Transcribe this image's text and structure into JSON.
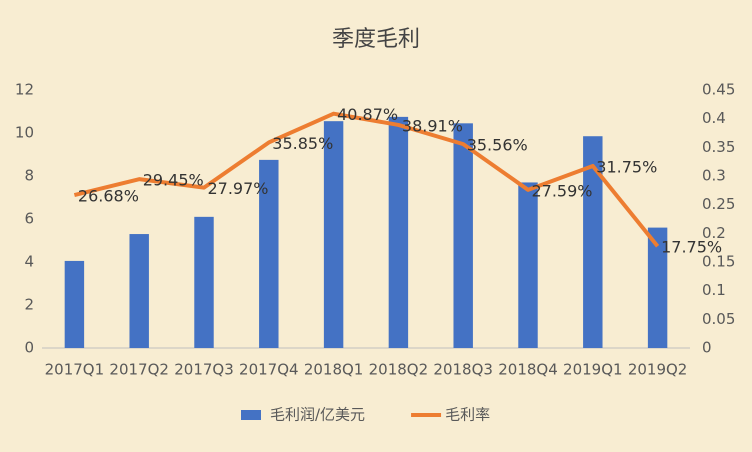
{
  "chart_data": {
    "type": "bar",
    "title": "季度毛利",
    "categories": [
      "2017Q1",
      "2017Q2",
      "2017Q3",
      "2017Q4",
      "2018Q1",
      "2018Q2",
      "2018Q3",
      "2018Q4",
      "2019Q1",
      "2019Q2"
    ],
    "series": [
      {
        "name": "毛利润/亿美元",
        "type": "bar",
        "color": "#4472c4",
        "values": [
          4.05,
          5.3,
          6.1,
          8.75,
          10.55,
          10.75,
          10.45,
          7.7,
          9.85,
          5.6
        ]
      },
      {
        "name": "毛利率",
        "type": "line",
        "axis": "y2",
        "color": "#ed7d31",
        "values": [
          0.2668,
          0.2945,
          0.2797,
          0.3585,
          0.4087,
          0.3891,
          0.3556,
          0.2759,
          0.3175,
          0.1775
        ],
        "value_labels": [
          "26.68%",
          "29.45%",
          "27.97%",
          "35.85%",
          "40.87%",
          "38.91%",
          "35.56%",
          "27.59%",
          "31.75%",
          "17.75%"
        ]
      }
    ],
    "ylim": [
      0,
      12
    ],
    "yticks": [
      0,
      2,
      4,
      6,
      8,
      10,
      12
    ],
    "y2lim": [
      0,
      0.45
    ],
    "y2ticks": [
      0,
      0.05,
      0.1,
      0.15,
      0.2,
      0.25,
      0.3,
      0.35,
      0.4,
      0.45
    ],
    "legend": "bottom"
  }
}
